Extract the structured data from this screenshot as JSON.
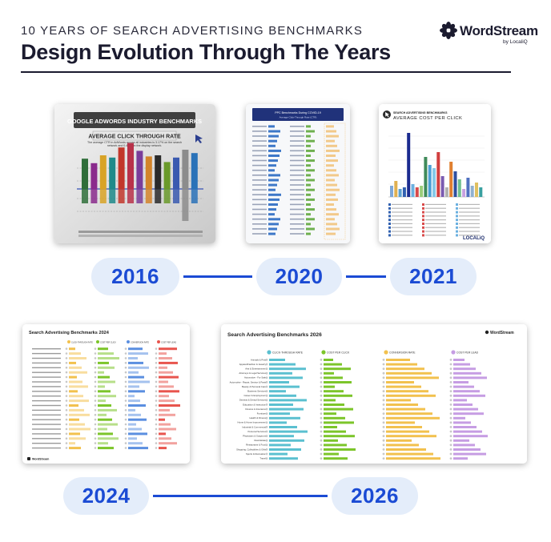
{
  "header": {
    "eyebrow": "10 YEARS OF SEARCH ADVERTISING BENCHMARKS",
    "title": "Design Evolution Through The Years"
  },
  "brand": {
    "name": "WordStream",
    "sub": "by LocaliQ"
  },
  "timeline": [
    {
      "year": "2016",
      "banner": "GOOGLE ADWORDS INDUSTRY BENCHMARKS",
      "subtitle": "AVERAGE CLICK THROUGH RATE",
      "description": "The average CTR in AdWords across all industries is 3.17% on the search network and 0.46% on the display network.",
      "bar_values": [
        2.7,
        2.3,
        3.0,
        2.8,
        3.7,
        4.1,
        3.4,
        2.9,
        3.0,
        2.4,
        2.8,
        3.5,
        3.2
      ]
    },
    {
      "year": "2020",
      "heading": "PPC Benchmarks During COVID-19",
      "subheading": "Average Click-Through Rate (CTR)"
    },
    {
      "year": "2021",
      "kicker": "SEARCH ADVERTISING BENCHMARKS",
      "heading": "AVERAGE COST PER CLICK",
      "logo": "LOCALiQ"
    },
    {
      "year": "2024",
      "heading": "Search Advertising Benchmarks 2024",
      "columns": [
        "CLICK-THROUGH RATE",
        "COST PER CLICK",
        "CONVERSION RATE",
        "COST PER LEAD"
      ],
      "logo": "WordStream"
    },
    {
      "year": "2026",
      "heading": "Search Advertising Benchmarks 2026",
      "columns": [
        "CLICK-THROUGH RATE",
        "COST PER CLICK",
        "CONVERSION RATE",
        "COST PER LEAD"
      ],
      "categories": [
        "Animals & Pets",
        "Apparel/Fashion & Jewelry",
        "Arts & Entertainment",
        "Attorneys & Legal Services",
        "Automotive - For Sale",
        "Automotive - Repair, Service & Parts",
        "Beauty & Personal Care",
        "Business Services",
        "Career & Employment",
        "Dentists & Dental Services",
        "Education & Instruction",
        "Finance & Insurance",
        "Furniture",
        "Health & Fitness",
        "Home & Home Improvement",
        "Industrial & Commercial",
        "Personal Services",
        "Physicians & Surgeons",
        "Real Estate",
        "Restaurants & Food",
        "Shopping, Collectibles & Gifts",
        "Sports & Recreation",
        "Travel"
      ],
      "logo": "WordStream"
    }
  ],
  "colors": {
    "accent": "#1b4bd4",
    "pill_bg": "#e4edfa",
    "ctr": "#5bc0d0",
    "cpc": "#7cc52a",
    "cvr": "#f2c14e",
    "cpl": "#c69de3"
  }
}
